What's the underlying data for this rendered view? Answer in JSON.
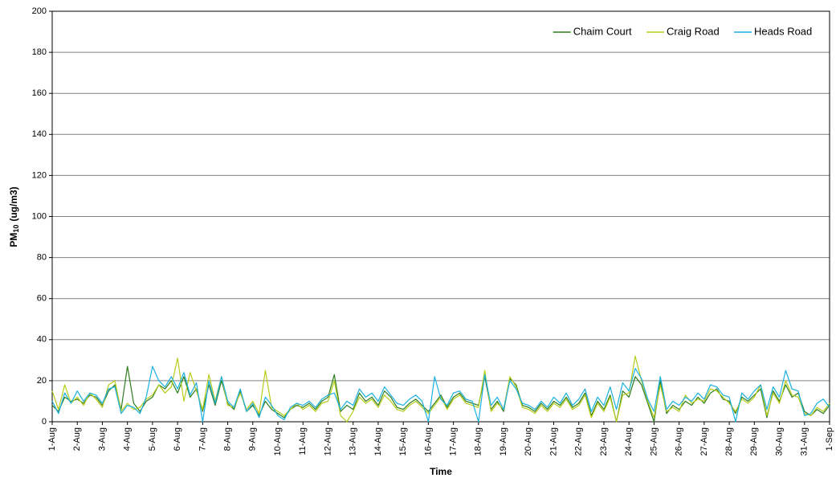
{
  "chart_data": {
    "type": "line",
    "xlabel": "Time",
    "ylabel": {
      "main": "PM",
      "sub": "10",
      "unit": "(ug/m3)"
    },
    "categories": [
      "1-Aug",
      null,
      null,
      null,
      "2-Aug",
      null,
      null,
      null,
      "3-Aug",
      null,
      null,
      null,
      "4-Aug",
      null,
      null,
      null,
      "5-Aug",
      null,
      null,
      null,
      "6-Aug",
      null,
      null,
      null,
      "7-Aug",
      null,
      null,
      null,
      "8-Aug",
      null,
      null,
      null,
      "9-Aug",
      null,
      null,
      null,
      "10-Aug",
      null,
      null,
      null,
      "11-Aug",
      null,
      null,
      null,
      "12-Aug",
      null,
      null,
      null,
      "13-Aug",
      null,
      null,
      null,
      "14-Aug",
      null,
      null,
      null,
      "15-Aug",
      null,
      null,
      null,
      "16-Aug",
      null,
      null,
      null,
      "17-Aug",
      null,
      null,
      null,
      "18-Aug",
      null,
      null,
      null,
      "19-Aug",
      null,
      null,
      null,
      "20-Aug",
      null,
      null,
      null,
      "21-Aug",
      null,
      null,
      null,
      "22-Aug",
      null,
      null,
      null,
      "23-Aug",
      null,
      null,
      null,
      "24-Aug",
      null,
      null,
      null,
      "25-Aug",
      null,
      null,
      null,
      "26-Aug",
      null,
      null,
      null,
      "27-Aug",
      null,
      null,
      null,
      "28-Aug",
      null,
      null,
      null,
      "29-Aug",
      null,
      null,
      null,
      "30-Aug",
      null,
      null,
      null,
      "31-Aug",
      null,
      null,
      null,
      "1-Sep"
    ],
    "series": [
      {
        "name": "Chaim Court",
        "color": "#2e7d1e",
        "values": [
          8,
          5,
          12,
          10,
          11,
          9,
          13,
          12,
          8,
          15,
          18,
          6,
          27,
          9,
          5,
          10,
          12,
          18,
          16,
          20,
          14,
          22,
          12,
          16,
          5,
          18,
          8,
          20,
          9,
          6,
          15,
          5,
          8,
          3,
          10,
          6,
          4,
          2,
          6,
          8,
          7,
          9,
          6,
          10,
          12,
          23,
          5,
          8,
          6,
          14,
          10,
          12,
          8,
          15,
          12,
          7,
          6,
          9,
          11,
          8,
          5,
          9,
          13,
          7,
          12,
          14,
          10,
          9,
          8,
          22,
          6,
          10,
          5,
          21,
          18,
          8,
          7,
          5,
          9,
          6,
          10,
          8,
          12,
          7,
          9,
          14,
          3,
          10,
          6,
          13,
          0,
          15,
          12,
          22,
          18,
          9,
          0,
          20,
          4,
          8,
          6,
          10,
          8,
          12,
          9,
          14,
          16,
          11,
          10,
          4,
          12,
          10,
          13,
          16,
          2,
          15,
          10,
          18,
          12,
          14,
          5,
          3,
          6,
          4,
          8
        ]
      },
      {
        "name": "Craig Road",
        "color": "#b8cc1a",
        "values": [
          15,
          6,
          18,
          9,
          12,
          8,
          14,
          11,
          7,
          18,
          20,
          5,
          9,
          6,
          7,
          11,
          13,
          18,
          14,
          17,
          31,
          10,
          24,
          15,
          6,
          23,
          10,
          22,
          8,
          7,
          14,
          6,
          10,
          4,
          25,
          7,
          5,
          3,
          6,
          9,
          6,
          8,
          5,
          9,
          10,
          20,
          3,
          0,
          5,
          12,
          9,
          11,
          7,
          13,
          10,
          6,
          5,
          8,
          10,
          7,
          4,
          8,
          12,
          6,
          11,
          13,
          9,
          8,
          7,
          25,
          5,
          9,
          6,
          22,
          17,
          7,
          6,
          4,
          8,
          5,
          9,
          7,
          11,
          6,
          8,
          13,
          2,
          9,
          5,
          12,
          0,
          13,
          14,
          32,
          20,
          10,
          2,
          18,
          5,
          7,
          5,
          13,
          9,
          11,
          10,
          16,
          15,
          12,
          9,
          5,
          11,
          9,
          12,
          18,
          3,
          14,
          9,
          20,
          13,
          12,
          4,
          3,
          7,
          5,
          9
        ]
      },
      {
        "name": "Heads Road",
        "color": "#1ab0e0",
        "values": [
          10,
          4,
          14,
          9,
          15,
          10,
          14,
          13,
          9,
          16,
          17,
          4,
          8,
          7,
          4,
          12,
          27,
          20,
          17,
          22,
          16,
          24,
          13,
          19,
          0,
          20,
          9,
          22,
          10,
          7,
          16,
          5,
          9,
          2,
          12,
          8,
          3,
          1,
          7,
          9,
          8,
          10,
          7,
          11,
          13,
          14,
          6,
          10,
          8,
          16,
          12,
          14,
          10,
          17,
          13,
          9,
          8,
          11,
          13,
          10,
          0,
          22,
          11,
          8,
          14,
          15,
          11,
          10,
          0,
          23,
          8,
          12,
          6,
          20,
          16,
          9,
          8,
          6,
          10,
          7,
          12,
          9,
          14,
          8,
          11,
          16,
          5,
          12,
          8,
          17,
          6,
          19,
          15,
          26,
          21,
          11,
          5,
          22,
          6,
          10,
          8,
          12,
          10,
          14,
          11,
          18,
          17,
          13,
          12,
          0,
          14,
          11,
          15,
          18,
          6,
          17,
          12,
          25,
          16,
          15,
          3,
          4,
          9,
          11,
          7
        ]
      }
    ],
    "ylim": [
      0,
      200
    ],
    "yticks": [
      0,
      20,
      40,
      60,
      80,
      100,
      120,
      140,
      160,
      180,
      200
    ],
    "grid": true,
    "legend": "top-right"
  }
}
